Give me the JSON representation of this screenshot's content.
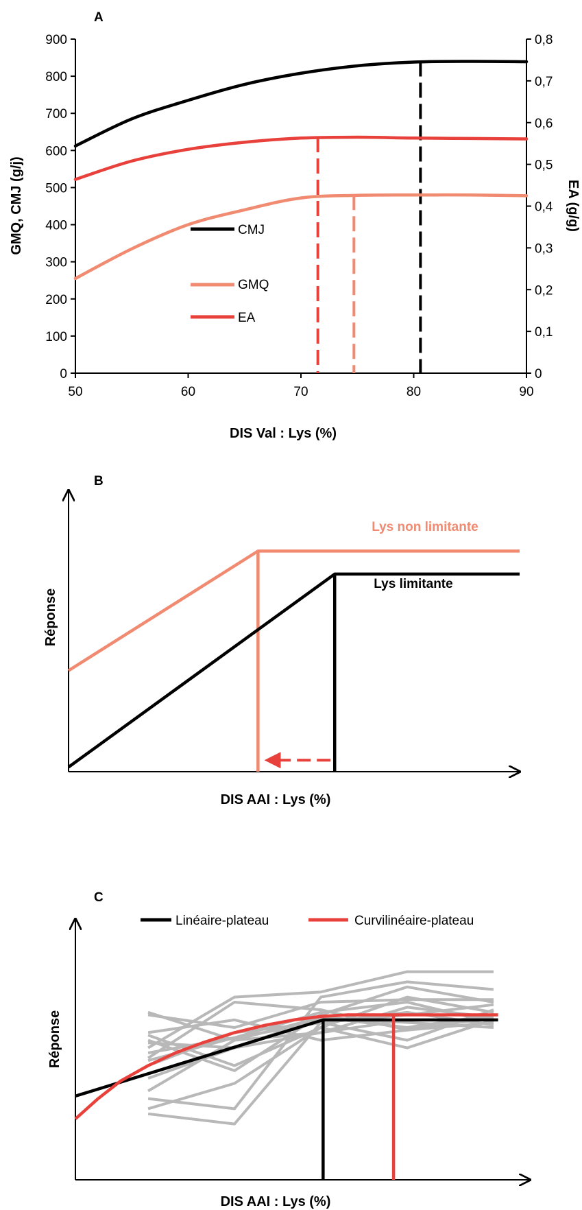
{
  "chart_data": [
    {
      "panel": "A",
      "type": "line",
      "xlabel": "DIS Val : Lys  (%)",
      "ylabel_left": "GMQ, CMJ (g/j)",
      "ylabel_right": "EA  (g/g)",
      "xlim": [
        50,
        90
      ],
      "ylim_left": [
        0,
        900
      ],
      "ylim_right": [
        0,
        0.8
      ],
      "x_ticks": [
        "50",
        "60",
        "70",
        "80",
        "90"
      ],
      "y_ticks_left": [
        "0",
        "100",
        "200",
        "300",
        "400",
        "500",
        "600",
        "700",
        "800",
        "900"
      ],
      "y_ticks_right": [
        "0",
        "0,1",
        "0,2",
        "0,3",
        "0,4",
        "0,5",
        "0,6",
        "0,7",
        "0,8"
      ],
      "legend": {
        "position": "center-left",
        "entries": [
          "CMJ",
          "GMQ",
          "EA"
        ]
      },
      "series": [
        {
          "name": "CMJ",
          "axis": "left",
          "color": "#000000",
          "x": [
            50,
            55,
            60,
            65,
            70,
            75,
            80,
            85,
            90
          ],
          "y": [
            612,
            685,
            735,
            778,
            808,
            828,
            838,
            840,
            839
          ]
        },
        {
          "name": "GMQ",
          "axis": "left",
          "color": "#f08a70",
          "x": [
            50,
            55,
            60,
            65,
            70,
            75,
            80,
            85,
            90
          ],
          "y": [
            255,
            335,
            400,
            440,
            472,
            479,
            480,
            480,
            478
          ]
        },
        {
          "name": "EA",
          "axis": "right",
          "color": "#e8403a",
          "x": [
            50,
            55,
            60,
            65,
            70,
            75,
            80,
            85,
            90
          ],
          "y": [
            0.464,
            0.508,
            0.536,
            0.553,
            0.563,
            0.565,
            0.563,
            0.562,
            0.561
          ]
        }
      ],
      "optima": [
        {
          "name": "EA",
          "x": 71.5,
          "y": 0.565,
          "axis": "right",
          "color": "#e8403a"
        },
        {
          "name": "GMQ",
          "x": 74.7,
          "y": 480,
          "axis": "left",
          "color": "#f08a70"
        },
        {
          "name": "CMJ",
          "x": 80.6,
          "y": 840,
          "axis": "left",
          "color": "#000000"
        }
      ]
    },
    {
      "panel": "B",
      "type": "line",
      "xlabel": "DIS AAI : Lys  (%)",
      "ylabel": "Réponse",
      "series": [
        {
          "name": "Lys non limitante",
          "color": "#f08a70",
          "x": [
            0,
            0.42,
            1.0
          ],
          "y": [
            0.44,
            0.96,
            0.96
          ],
          "breakpoint_x": 0.42
        },
        {
          "name": "Lys limitante",
          "color": "#000000",
          "x": [
            0,
            0.59,
            1.0
          ],
          "y": [
            0.02,
            0.86,
            0.86
          ],
          "breakpoint_x": 0.59
        }
      ],
      "labels": [
        "Lys non limitante",
        "Lys limitante"
      ],
      "arrow": {
        "from_x": 0.59,
        "to_x": 0.42,
        "y": 0.05,
        "color": "#e8403a",
        "dashed": true
      }
    },
    {
      "panel": "C",
      "type": "line",
      "xlabel": "DIS AAI : Lys  (%)",
      "ylabel": "Réponse",
      "legend": {
        "position": "top",
        "entries": [
          {
            "name": "Linéaire-plateau",
            "color": "#000000"
          },
          {
            "name": "Curvilinéaire-plateau",
            "color": "#e8403a"
          }
        ]
      },
      "x_levels": [
        0.16,
        0.35,
        0.54,
        0.73,
        0.92
      ],
      "background_series": [
        [
          0.66,
          0.55,
          0.58,
          0.63,
          0.63
        ],
        [
          0.65,
          0.6,
          0.7,
          0.71,
          0.71
        ],
        [
          0.58,
          0.63,
          0.55,
          0.59,
          0.62
        ],
        [
          0.57,
          0.45,
          0.6,
          0.72,
          0.66
        ],
        [
          0.55,
          0.43,
          0.65,
          0.76,
          0.7
        ],
        [
          0.52,
          0.72,
          0.74,
          0.82,
          0.82
        ],
        [
          0.5,
          0.56,
          0.62,
          0.66,
          0.61
        ],
        [
          0.48,
          0.7,
          0.67,
          0.59,
          0.64
        ],
        [
          0.45,
          0.58,
          0.62,
          0.55,
          0.67
        ],
        [
          0.4,
          0.52,
          0.64,
          0.6,
          0.65
        ],
        [
          0.35,
          0.55,
          0.64,
          0.62,
          0.6
        ],
        [
          0.32,
          0.28,
          0.72,
          0.78,
          0.75
        ],
        [
          0.28,
          0.38,
          0.6,
          0.52,
          0.63
        ],
        [
          0.26,
          0.22,
          0.62,
          0.65,
          0.69
        ],
        [
          0.54,
          0.52,
          0.58,
          0.68,
          0.64
        ],
        [
          0.47,
          0.56,
          0.66,
          0.7,
          0.62
        ]
      ],
      "series": [
        {
          "name": "Linéaire-plateau",
          "color": "#000000",
          "x": [
            0,
            0.545,
            0.93
          ],
          "y": [
            0.33,
            0.63,
            0.63
          ],
          "breakpoint_x": 0.545
        },
        {
          "name": "Curvilinéaire-plateau",
          "color": "#e8403a",
          "x": [
            0,
            0.05,
            0.1,
            0.16,
            0.22,
            0.28,
            0.35,
            0.42,
            0.48,
            0.54,
            0.6,
            0.7,
            0.8,
            0.93
          ],
          "y": [
            0.24,
            0.32,
            0.39,
            0.45,
            0.5,
            0.54,
            0.58,
            0.61,
            0.63,
            0.644,
            0.65,
            0.65,
            0.65,
            0.65
          ],
          "breakpoint_x": 0.7
        }
      ]
    }
  ]
}
